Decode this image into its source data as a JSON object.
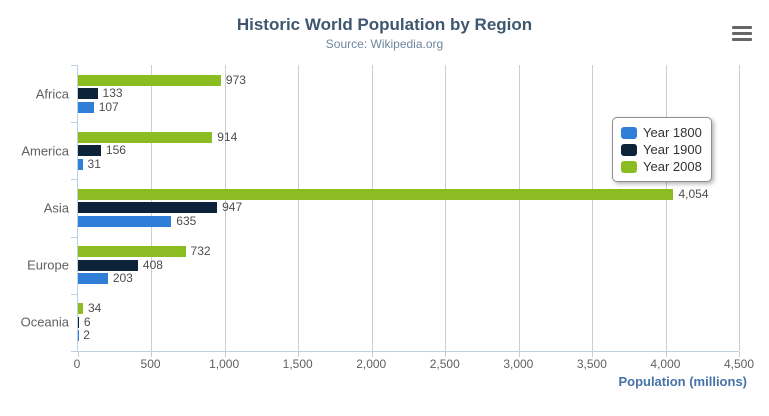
{
  "header": {
    "menu_icon": "hamburger-icon"
  },
  "chart_data": {
    "type": "bar",
    "orientation": "horizontal",
    "title": "Historic World Population by Region",
    "subtitle": "Source: Wikipedia.org",
    "categories": [
      "Africa",
      "America",
      "Asia",
      "Europe",
      "Oceania"
    ],
    "series": [
      {
        "name": "Year 1800",
        "color": "#2f7ed8",
        "values": [
          107,
          31,
          635,
          203,
          2
        ]
      },
      {
        "name": "Year 1900",
        "color": "#0d233a",
        "values": [
          133,
          156,
          947,
          408,
          6
        ]
      },
      {
        "name": "Year 2008",
        "color": "#8bbc21",
        "values": [
          973,
          914,
          4054,
          732,
          34
        ]
      }
    ],
    "display_order_top_to_bottom": [
      "Year 2008",
      "Year 1900",
      "Year 1800"
    ],
    "data_labels_visible": true,
    "xlabel": "Population (millions)",
    "xlim": [
      0,
      4500
    ],
    "x_ticks": [
      0,
      500,
      1000,
      1500,
      2000,
      2500,
      3000,
      3500,
      4000,
      4500
    ],
    "x_tick_labels": [
      "0",
      "500",
      "1,000",
      "1,500",
      "2,000",
      "2,500",
      "3,000",
      "3,500",
      "4,000",
      "4,500"
    ],
    "grid": true,
    "legend": {
      "position": "right",
      "items": [
        "Year 1800",
        "Year 1900",
        "Year 2008"
      ]
    },
    "colors": {
      "title": "#3E576F",
      "subtitle": "#6D869F",
      "axis_line": "#C0D0E0",
      "gridline": "#CDCDCD",
      "tick_label": "#606060",
      "data_label": "#4d4d4d",
      "axis_title": "#4572A7"
    }
  }
}
